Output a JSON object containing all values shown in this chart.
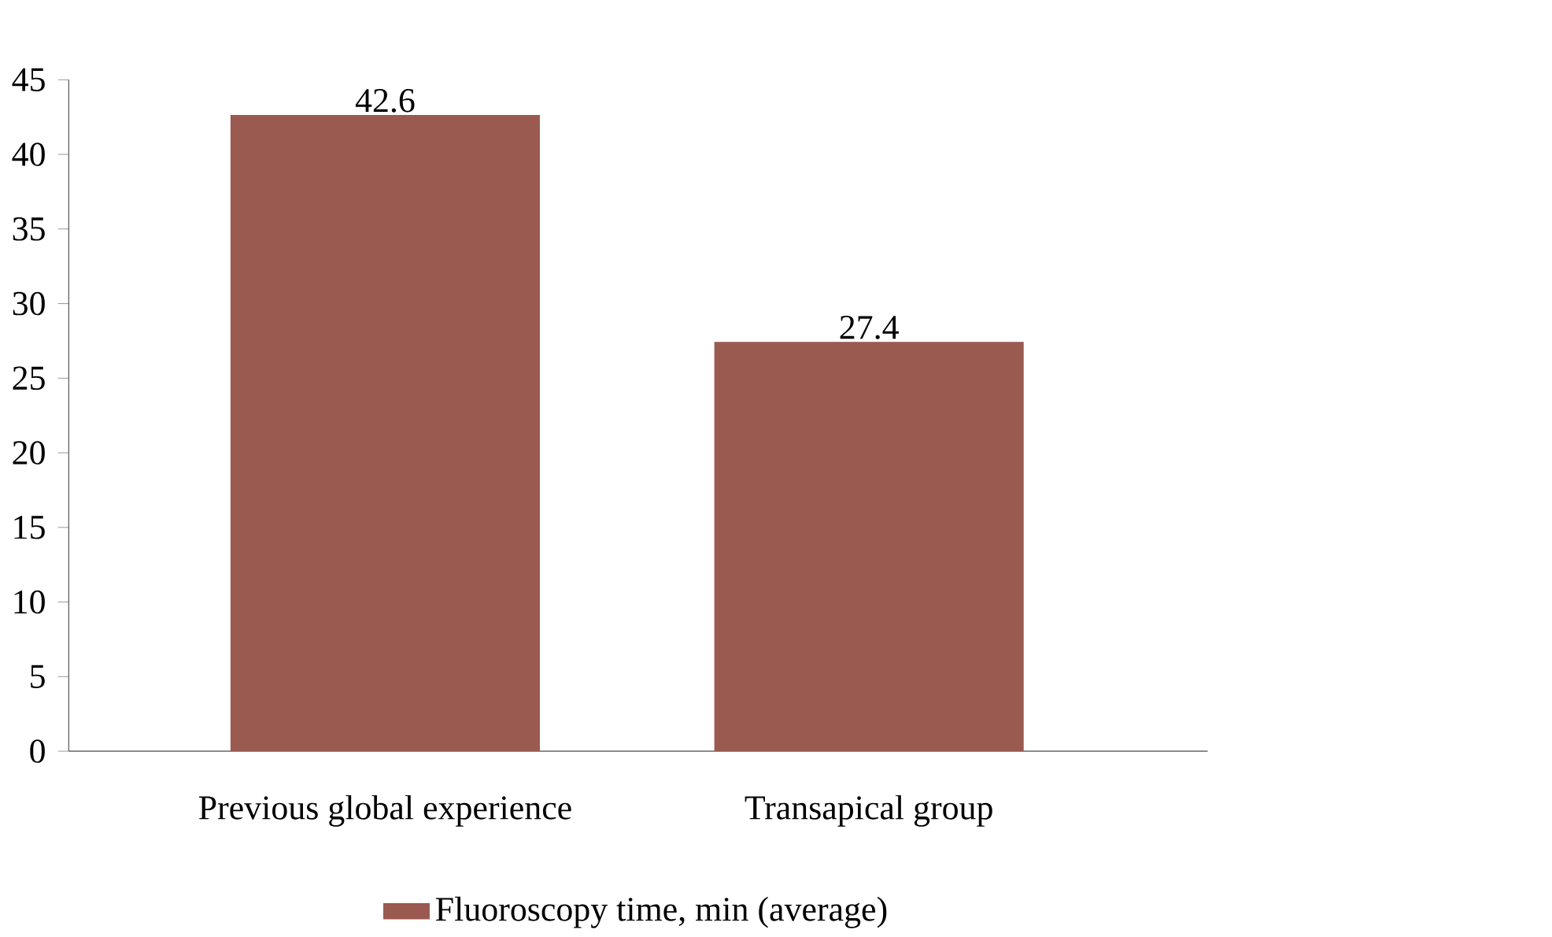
{
  "chart_data": {
    "type": "bar",
    "categories": [
      "Previous global experience",
      "Transapical group"
    ],
    "series": [
      {
        "name": "Fluoroscopy time, min (average)",
        "color": "#9b5a50",
        "values": [
          42.6,
          27.4
        ]
      }
    ],
    "ylim": [
      0,
      45
    ],
    "yticks": [
      0,
      5,
      10,
      15,
      20,
      25,
      30,
      35,
      40,
      45
    ],
    "data_labels": true,
    "legend": "bottom",
    "grid": false
  }
}
